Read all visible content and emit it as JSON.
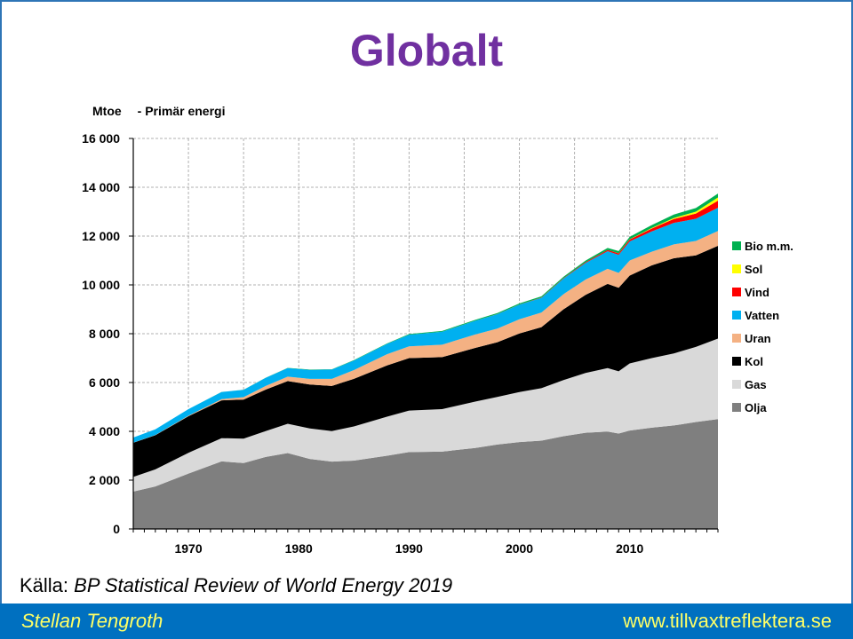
{
  "slide": {
    "title": "Globalt",
    "unit_label": "Mtoe",
    "unit_sublabel": "- Primär energi",
    "source_prefix": "Källa:",
    "source_text": "BP Statistical Review of World Energy 2019",
    "author": "Stellan Tengroth",
    "website": "www.tillvaxtreflektera.se"
  },
  "colors": {
    "title": "#7030a0",
    "footer_bg": "#0070c0",
    "footer_text": "#ffff66",
    "frame": "#2e75b6"
  },
  "chart_data": {
    "type": "area",
    "stacked": true,
    "ylim": [
      0,
      16000
    ],
    "xlim": [
      1965,
      2018
    ],
    "yticks": [
      0,
      2000,
      4000,
      6000,
      8000,
      10000,
      12000,
      14000,
      16000
    ],
    "ytick_labels": [
      "0",
      "2 000",
      "4 000",
      "6 000",
      "8 000",
      "10 000",
      "12 000",
      "14 000",
      "16 000"
    ],
    "xticks": [
      1970,
      1980,
      1990,
      2000,
      2010
    ],
    "xtick_labels": [
      "1970",
      "1980",
      "1990",
      "2000",
      "2010"
    ],
    "grid": true,
    "legend_position": "right",
    "x": [
      1965,
      1967,
      1970,
      1973,
      1975,
      1977,
      1979,
      1981,
      1983,
      1985,
      1988,
      1990,
      1993,
      1996,
      1998,
      2000,
      2002,
      2004,
      2006,
      2008,
      2009,
      2010,
      2012,
      2014,
      2016,
      2018
    ],
    "series": [
      {
        "name": "Olja",
        "color": "#7f7f7f",
        "values": [
          1530,
          1740,
          2270,
          2770,
          2700,
          2950,
          3110,
          2870,
          2760,
          2800,
          3000,
          3150,
          3170,
          3320,
          3460,
          3560,
          3620,
          3800,
          3940,
          3990,
          3910,
          4030,
          4150,
          4240,
          4380,
          4500
        ]
      },
      {
        "name": "Gas",
        "color": "#d9d9d9",
        "values": [
          600,
          700,
          850,
          950,
          1000,
          1060,
          1200,
          1250,
          1250,
          1400,
          1600,
          1700,
          1740,
          1900,
          1950,
          2050,
          2150,
          2300,
          2450,
          2600,
          2550,
          2750,
          2850,
          2950,
          3080,
          3300
        ]
      },
      {
        "name": "Kol",
        "color": "#000000",
        "values": [
          1400,
          1400,
          1500,
          1550,
          1600,
          1700,
          1750,
          1800,
          1850,
          1950,
          2100,
          2150,
          2130,
          2200,
          2240,
          2400,
          2500,
          2900,
          3200,
          3450,
          3420,
          3600,
          3800,
          3900,
          3750,
          3800
        ]
      },
      {
        "name": "Uran",
        "color": "#f4b183",
        "values": [
          6,
          10,
          20,
          50,
          100,
          150,
          180,
          230,
          290,
          360,
          460,
          480,
          510,
          550,
          560,
          580,
          600,
          620,
          630,
          620,
          610,
          620,
          560,
          570,
          590,
          610
        ]
      },
      {
        "name": "Vatten",
        "color": "#00b0f0",
        "values": [
          210,
          230,
          270,
          290,
          300,
          330,
          350,
          370,
          380,
          390,
          420,
          480,
          530,
          560,
          590,
          600,
          600,
          640,
          680,
          720,
          740,
          780,
          830,
          880,
          910,
          950
        ]
      },
      {
        "name": "Vind",
        "color": "#ff0000",
        "values": [
          0,
          0,
          0,
          0,
          0,
          0,
          0,
          0,
          0,
          0,
          0,
          0,
          2,
          3,
          5,
          7,
          11,
          18,
          30,
          50,
          62,
          78,
          120,
          160,
          215,
          290
        ]
      },
      {
        "name": "Sol",
        "color": "#ffff00",
        "values": [
          0,
          0,
          0,
          0,
          0,
          0,
          0,
          0,
          0,
          0,
          0,
          0,
          0,
          0,
          0,
          0,
          0,
          0,
          1,
          3,
          5,
          8,
          22,
          43,
          75,
          130
        ]
      },
      {
        "name": "Bio m.m.",
        "color": "#00b050",
        "values": [
          0,
          0,
          0,
          2,
          4,
          6,
          8,
          10,
          12,
          16,
          20,
          25,
          30,
          35,
          40,
          45,
          50,
          55,
          65,
          80,
          90,
          100,
          120,
          140,
          150,
          160
        ]
      }
    ]
  }
}
